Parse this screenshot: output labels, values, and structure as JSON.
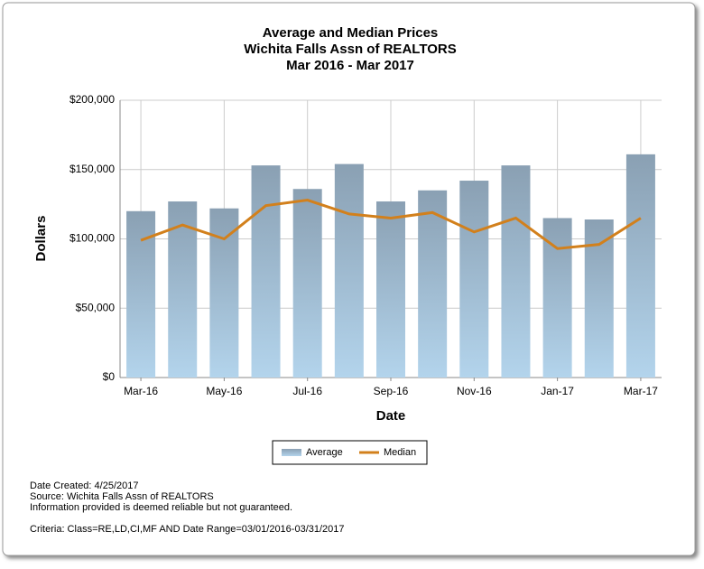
{
  "chart_data": {
    "type": "bar_line",
    "title": "Average and Median Prices",
    "subtitle": [
      "Wichita Falls Assn of REALTORS",
      "Mar 2016 - Mar 2017"
    ],
    "x_label": "Date",
    "y_label": "Dollars",
    "categories": [
      "Mar-16",
      null,
      "May-16",
      null,
      "Jul-16",
      null,
      "Sep-16",
      null,
      "Nov-16",
      null,
      "Jan-17",
      null,
      "Mar-17"
    ],
    "series": [
      {
        "name": "Average",
        "type": "bar",
        "color": "#8aa0b3",
        "values": [
          120000,
          127000,
          122000,
          153000,
          136000,
          154000,
          127000,
          135000,
          142000,
          153000,
          115000,
          114000,
          161000
        ]
      },
      {
        "name": "Median",
        "type": "line",
        "color": "#d2801c",
        "values": [
          99000,
          110000,
          100000,
          124000,
          128000,
          118000,
          115000,
          119000,
          105000,
          115000,
          93000,
          96000,
          115000
        ]
      }
    ],
    "ylim": [
      0,
      200000
    ],
    "yticks": [
      {
        "value": 0,
        "label": "$0"
      },
      {
        "value": 50000,
        "label": "$50,000"
      },
      {
        "value": 100000,
        "label": "$100,000"
      },
      {
        "value": 150000,
        "label": "$150,000"
      },
      {
        "value": 200000,
        "label": "$200,000"
      }
    ],
    "grid": true,
    "legend": "bottom"
  },
  "footer": [
    "Date Created: 4/25/2017",
    "Source: Wichita Falls Assn of REALTORS",
    "Information provided is deemed reliable but not guaranteed.",
    "Criteria: Class=RE,LD,CI,MF AND Date Range=03/01/2016-03/31/2017"
  ]
}
